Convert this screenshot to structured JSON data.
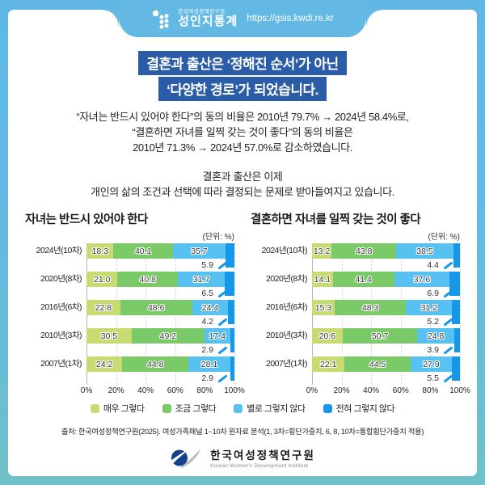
{
  "frame": {
    "top_color": "#64b9e4",
    "bottom_color": "#6fc0c8"
  },
  "header": {
    "org_small": "한국여성정책연구원",
    "brand": "성인지통계",
    "url": "https://gsis.kwdi.re.kr"
  },
  "title": {
    "line1": "결혼과 출산은 ‘정해진 순서’가 아닌",
    "line2": "‘다양한 경로’가 되었습니다.",
    "bg_color": "#2b5ca8"
  },
  "intro": {
    "line1": "“자녀는 반드시 있어야 한다”의 동의 비율은 2010년 79.7% → 2024년 58.4%로,",
    "line2": "“결혼하면 자녀를 일찍 갖는 것이 좋다”의 동의 비율은",
    "line3": "2010년 71.3% → 2024년 57.0%로 감소하였습니다.",
    "line4": "결혼과 출산은 이제",
    "line5": "개인의 삶의 조건과 선택에 따라 결정되는 문제로 받아들여지고 있습니다."
  },
  "chart_data": [
    {
      "type": "bar",
      "orientation": "horizontal-stacked",
      "title": "자녀는 반드시 있어야 한다",
      "unit_label": "(단위: %)",
      "categories": [
        "2024년(10차)",
        "2020년(8차)",
        "2016년(6차)",
        "2010년(3차)",
        "2007년(1차)"
      ],
      "series": [
        {
          "name": "매우 그렇다",
          "color": "#c6dc70",
          "values": [
            18.3,
            21.0,
            22.8,
            30.5,
            24.2
          ]
        },
        {
          "name": "조금 그렇다",
          "color": "#7acb67",
          "values": [
            40.1,
            40.8,
            48.6,
            49.2,
            44.8
          ]
        },
        {
          "name": "별로 그렇지 않다",
          "color": "#57c1f1",
          "values": [
            35.7,
            31.7,
            24.4,
            17.4,
            28.1
          ]
        },
        {
          "name": "전혀 그렇지 않다",
          "color": "#1598e9",
          "values": [
            5.9,
            6.5,
            4.2,
            2.9,
            2.9
          ]
        }
      ],
      "x_ticks": [
        "0%",
        "20%",
        "40%",
        "60%",
        "80%",
        "100%"
      ],
      "xlim": [
        0,
        100
      ],
      "grid": true,
      "legend_position": "bottom"
    },
    {
      "type": "bar",
      "orientation": "horizontal-stacked",
      "title": "결혼하면 자녀를 일찍 갖는 것이 좋다",
      "unit_label": "(단위: %)",
      "categories": [
        "2024년(10차)",
        "2020년(8차)",
        "2016년(6차)",
        "2010년(3차)",
        "2007년(1차)"
      ],
      "series": [
        {
          "name": "매우 그렇다",
          "color": "#c6dc70",
          "values": [
            13.2,
            14.1,
            15.3,
            20.6,
            22.1
          ]
        },
        {
          "name": "조금 그렇다",
          "color": "#7acb67",
          "values": [
            43.8,
            41.4,
            48.3,
            50.7,
            44.5
          ]
        },
        {
          "name": "별로 그렇지 않다",
          "color": "#57c1f1",
          "values": [
            38.5,
            37.6,
            31.2,
            24.8,
            27.9
          ]
        },
        {
          "name": "전혀 그렇지 않다",
          "color": "#1598e9",
          "values": [
            4.4,
            6.9,
            5.2,
            3.9,
            5.5
          ]
        }
      ],
      "x_ticks": [
        "0%",
        "20%",
        "40%",
        "60%",
        "80%",
        "100%"
      ],
      "xlim": [
        0,
        100
      ],
      "grid": true,
      "legend_position": "bottom"
    }
  ],
  "legend": [
    {
      "label": "매우 그렇다",
      "color": "#c6dc70"
    },
    {
      "label": "조금 그렇다",
      "color": "#7acb67"
    },
    {
      "label": "별로 그렇지 않다",
      "color": "#57c1f1"
    },
    {
      "label": "전혀 그렇지 않다",
      "color": "#1598e9"
    }
  ],
  "source": "출처: 한국여성정책연구원(2025). 여성가족패널 1~10차 원자료 분석(1, 3차=횡단가중치, 6, 8, 10차=통합횡단가중치 적용)",
  "footer_logo": {
    "kr": "한국여성정책연구원",
    "en": "Korean Women's Development Institute"
  },
  "callout_line_color": "#1598e9"
}
